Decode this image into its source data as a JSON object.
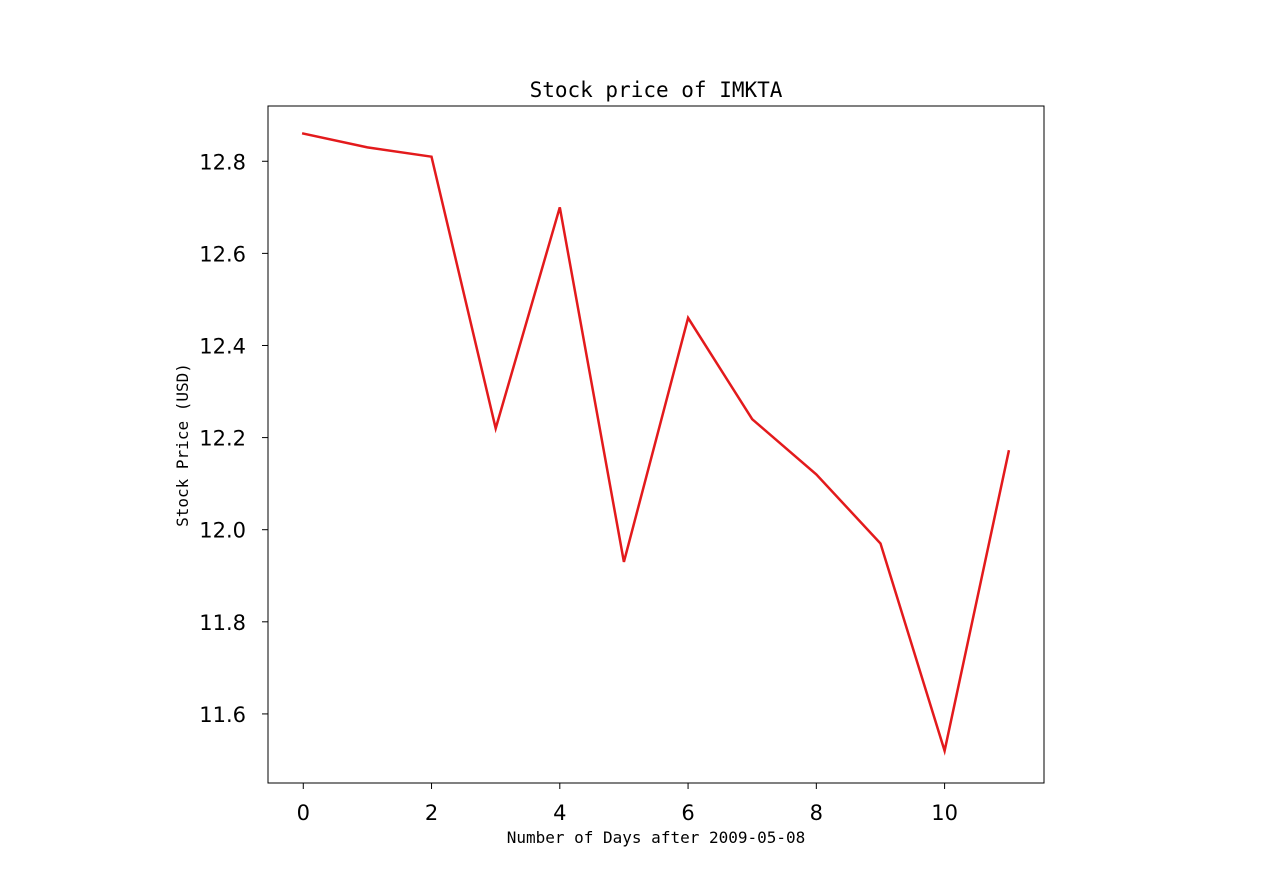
{
  "chart_data": {
    "type": "line",
    "title": "Stock price of IMKTA",
    "xlabel": "Number of Days after 2009-05-08",
    "ylabel": "Stock Price (USD)",
    "xlim": [
      -0.55,
      11.55
    ],
    "ylim": [
      11.45,
      12.92
    ],
    "xticks": [
      0,
      2,
      4,
      6,
      8,
      10
    ],
    "xtick_labels": [
      "0",
      "2",
      "4",
      "6",
      "8",
      "10"
    ],
    "yticks": [
      11.6,
      11.8,
      12.0,
      12.2,
      12.4,
      12.6,
      12.8
    ],
    "ytick_labels": [
      "11.6",
      "11.8",
      "12.0",
      "12.2",
      "12.4",
      "12.6",
      "12.8"
    ],
    "grid": false,
    "legend": false,
    "series": [
      {
        "color": "#e31a1c",
        "x": [
          0,
          1,
          2,
          3,
          4,
          5,
          6,
          7,
          8,
          9,
          10,
          11
        ],
        "y": [
          12.86,
          12.83,
          12.81,
          12.22,
          12.7,
          11.93,
          12.46,
          12.24,
          12.12,
          11.97,
          11.52,
          12.17
        ]
      }
    ]
  }
}
